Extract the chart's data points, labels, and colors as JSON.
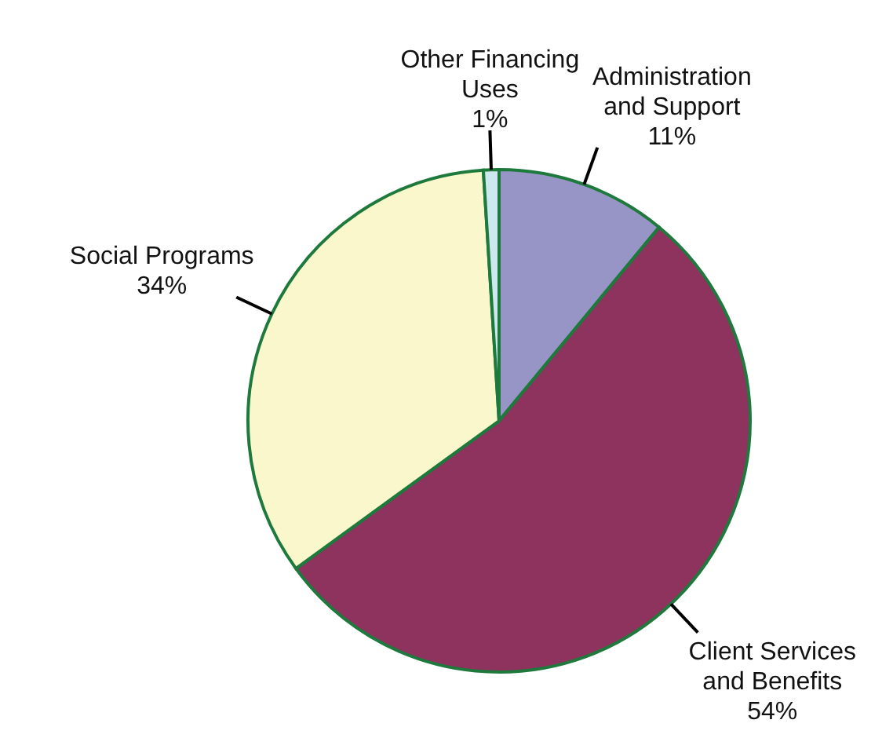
{
  "chart_data": {
    "type": "pie",
    "categories": [
      "Administration\nand Support",
      "Client Services\nand Benefits",
      "Social Programs",
      "Other Financing\nUses"
    ],
    "values": [
      11,
      54,
      34,
      1
    ],
    "value_labels": [
      "11%",
      "54%",
      "34%",
      "1%"
    ],
    "colors": [
      "#9794c6",
      "#8e325e",
      "#faf7cc",
      "#cde8ee"
    ]
  }
}
